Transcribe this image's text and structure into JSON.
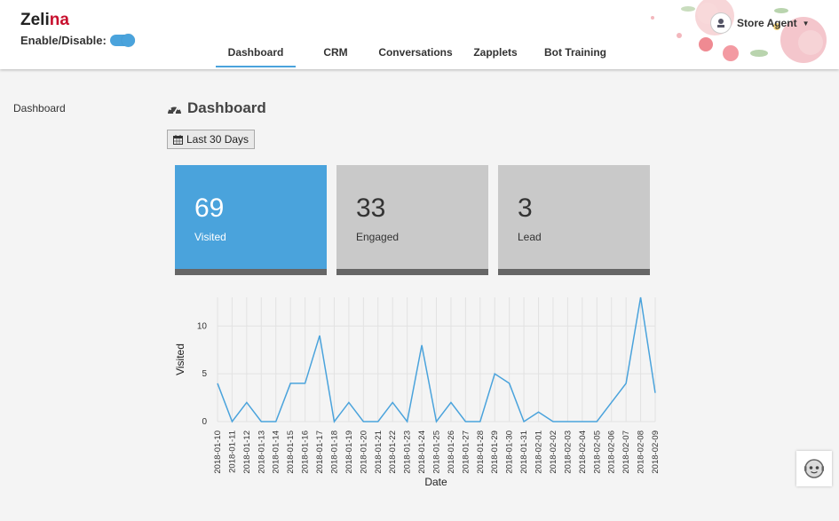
{
  "header": {
    "brand_main": "Zeli",
    "brand_accent": "na",
    "toggle_label": "Enable/Disable:",
    "user_name": "Store Agent"
  },
  "nav": {
    "tabs": [
      {
        "label": "Dashboard",
        "active": true
      },
      {
        "label": "CRM"
      },
      {
        "label": "Conversations"
      },
      {
        "label": "Zapplets"
      },
      {
        "label": "Bot Training"
      }
    ]
  },
  "sidebar": {
    "dashboard_label": "Dashboard"
  },
  "main": {
    "title": "Dashboard",
    "range_label": "Last 30 Days",
    "cards": [
      {
        "value": "69",
        "label": "Visited"
      },
      {
        "value": "33",
        "label": "Engaged"
      },
      {
        "value": "3",
        "label": "Lead"
      }
    ]
  },
  "colors": {
    "accent": "#4aa3dc",
    "brand_red": "#c8102e",
    "card_grey": "#c9c9c9"
  },
  "chart_data": {
    "type": "line",
    "xlabel": "Date",
    "ylabel": "Visited",
    "ylim": [
      0,
      13
    ],
    "yticks": [
      0,
      5,
      10
    ],
    "grid": true,
    "x": [
      "2018-01-10",
      "2018-01-11",
      "2018-01-12",
      "2018-01-13",
      "2018-01-14",
      "2018-01-15",
      "2018-01-16",
      "2018-01-17",
      "2018-01-18",
      "2018-01-19",
      "2018-01-20",
      "2018-01-21",
      "2018-01-22",
      "2018-01-23",
      "2018-01-24",
      "2018-01-25",
      "2018-01-26",
      "2018-01-27",
      "2018-01-28",
      "2018-01-29",
      "2018-01-30",
      "2018-01-31",
      "2018-02-01",
      "2018-02-02",
      "2018-02-03",
      "2018-02-04",
      "2018-02-05",
      "2018-02-06",
      "2018-02-07",
      "2018-02-08",
      "2018-02-09"
    ],
    "series": [
      {
        "values": [
          4,
          0,
          2,
          0,
          0,
          4,
          4,
          9,
          0,
          2,
          0,
          0,
          2,
          0,
          8,
          0,
          2,
          0,
          0,
          5,
          4,
          0,
          1,
          0,
          0,
          0,
          0,
          2,
          4,
          13,
          3
        ]
      }
    ]
  }
}
